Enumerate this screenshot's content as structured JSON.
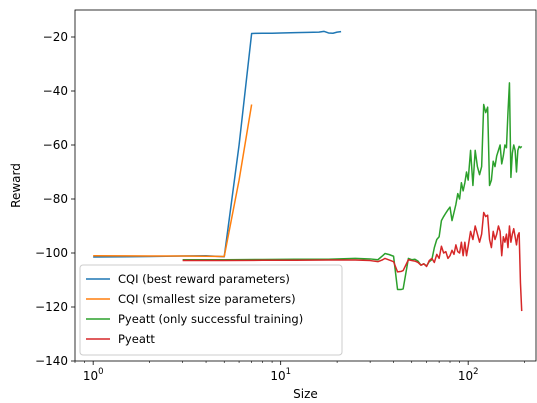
{
  "chart_data": {
    "type": "line",
    "title": "",
    "xlabel": "Size",
    "ylabel": "Reward",
    "xscale": "log",
    "xlim": [
      0.8,
      230
    ],
    "ylim": [
      -140,
      -10
    ],
    "xticks": [
      {
        "value": 1,
        "base": "10",
        "exp": "0"
      },
      {
        "value": 10,
        "base": "10",
        "exp": "1"
      },
      {
        "value": 100,
        "base": "10",
        "exp": "2"
      }
    ],
    "yticks": [
      {
        "value": -20,
        "label": "−20"
      },
      {
        "value": -40,
        "label": "−40"
      },
      {
        "value": -60,
        "label": "−60"
      },
      {
        "value": -80,
        "label": "−80"
      },
      {
        "value": -100,
        "label": "−100"
      },
      {
        "value": -120,
        "label": "−120"
      },
      {
        "value": -140,
        "label": "−140"
      }
    ],
    "grid": false,
    "legend_position": "lower-left",
    "series": [
      {
        "name": "CQI (best reward parameters)",
        "color": "#1f77b4",
        "x": [
          1,
          2,
          3,
          4,
          5,
          6,
          7,
          8,
          9,
          10,
          12,
          14,
          16,
          17,
          18,
          19,
          20,
          21
        ],
        "y": [
          -101.5,
          -101.3,
          -101.1,
          -101.0,
          -101.4,
          -60,
          -18.7,
          -18.6,
          -18.6,
          -18.5,
          -18.4,
          -18.3,
          -18.2,
          -17.9,
          -18.5,
          -18.6,
          -18.2,
          -18.0
        ]
      },
      {
        "name": "CQI (smallest size parameters)",
        "color": "#ff7f0e",
        "x": [
          1,
          2,
          3,
          4,
          5,
          6,
          7
        ],
        "y": [
          -101.0,
          -101.1,
          -101.1,
          -101.2,
          -101.3,
          -73,
          -45
        ]
      },
      {
        "name": "Pyeatt (only successful training)",
        "color": "#2ca02c",
        "x": [
          3,
          5,
          8,
          12,
          18,
          25,
          30,
          33,
          35,
          36,
          38,
          40,
          42,
          44,
          45,
          48,
          50,
          52,
          54,
          56,
          58,
          60,
          62,
          64,
          66,
          68,
          70,
          72,
          74,
          76,
          78,
          80,
          82,
          84,
          86,
          88,
          90,
          92,
          94,
          96,
          98,
          100,
          103,
          106,
          109,
          112,
          115,
          118,
          121,
          124,
          127,
          130,
          133,
          136,
          139,
          142,
          145,
          148,
          151,
          154,
          157,
          160,
          163,
          166,
          169,
          172,
          175,
          178,
          181,
          184,
          187,
          190,
          193
        ],
        "y": [
          -102.5,
          -102.5,
          -102.4,
          -102.3,
          -102.3,
          -102.0,
          -102.2,
          -102.5,
          -101.0,
          -100.2,
          -100.6,
          -101.2,
          -113.5,
          -113.5,
          -113.3,
          -102.0,
          -102.5,
          -102.3,
          -103.0,
          -104.5,
          -104.0,
          -104.8,
          -103.2,
          -102.5,
          -98.0,
          -95.0,
          -94.0,
          -88.0,
          -86.5,
          -85.2,
          -84.0,
          -83.0,
          -88.0,
          -85.0,
          -82.0,
          -78.0,
          -80.0,
          -74.0,
          -77.0,
          -74.0,
          -70.0,
          -73.0,
          -62.0,
          -75.0,
          -62.0,
          -68.0,
          -71.0,
          -68.0,
          -45.0,
          -48.0,
          -46.0,
          -75.0,
          -73.0,
          -66.0,
          -68.0,
          -64.0,
          -62.0,
          -60.0,
          -67.0,
          -64.0,
          -60.0,
          -61.0,
          -48.0,
          -37.0,
          -72.0,
          -63.0,
          -60.0,
          -62.0,
          -70.0,
          -62.0,
          -60.5,
          -61.0,
          -60.5
        ]
      },
      {
        "name": "Pyeatt",
        "color": "#d62728",
        "x": [
          3,
          5,
          8,
          12,
          18,
          25,
          30,
          33,
          35,
          36,
          38,
          40,
          42,
          44,
          45,
          48,
          50,
          52,
          54,
          56,
          58,
          60,
          62,
          64,
          66,
          68,
          70,
          72,
          74,
          76,
          78,
          80,
          82,
          84,
          86,
          88,
          90,
          92,
          94,
          96,
          98,
          100,
          103,
          106,
          109,
          112,
          115,
          118,
          121,
          124,
          127,
          130,
          133,
          136,
          139,
          142,
          145,
          148,
          151,
          154,
          157,
          160,
          163,
          166,
          169,
          172,
          175,
          178,
          181,
          184,
          187,
          190,
          193
        ],
        "y": [
          -102.8,
          -102.8,
          -102.7,
          -102.7,
          -102.6,
          -102.6,
          -102.8,
          -103.2,
          -102.5,
          -102.0,
          -102.6,
          -103.2,
          -107.0,
          -106.8,
          -106.5,
          -102.5,
          -102.8,
          -103.0,
          -103.5,
          -104.5,
          -104.0,
          -105.0,
          -102.8,
          -102.0,
          -103.5,
          -100.5,
          -102.0,
          -97.5,
          -100.0,
          -99.5,
          -102.0,
          -101.0,
          -99.0,
          -100.5,
          -97.0,
          -99.5,
          -100.0,
          -96.0,
          -101.0,
          -96.0,
          -101.0,
          -97.5,
          -92.0,
          -95.0,
          -90.0,
          -93.0,
          -96.0,
          -93.0,
          -85.0,
          -86.5,
          -86.0,
          -95.0,
          -98.0,
          -92.0,
          -95.0,
          -93.0,
          -90.0,
          -92.0,
          -101.0,
          -94.0,
          -96.0,
          -93.0,
          -98.0,
          -90.0,
          -96.0,
          -93.0,
          -91.0,
          -94.0,
          -97.0,
          -93.5,
          -92.5,
          -111.0,
          -121.5
        ]
      }
    ]
  }
}
